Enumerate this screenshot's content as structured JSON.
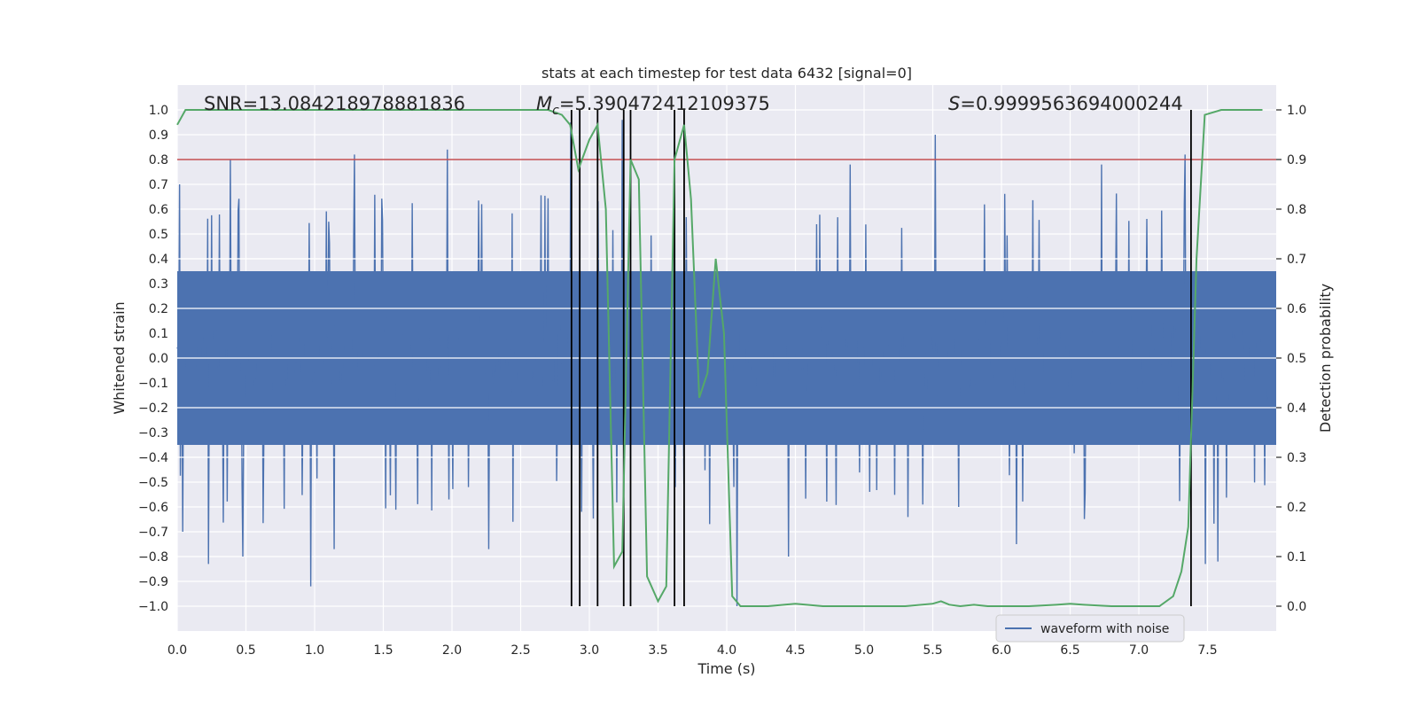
{
  "chart_data": {
    "type": "line",
    "title": "stats at each timestep for test data 6432 [signal=0]",
    "xlabel": "Time (s)",
    "ylabel": "Whitened strain",
    "y2label": "Detection probability",
    "xlim": [
      0.0,
      8.0
    ],
    "ylim": [
      -1.1,
      1.1
    ],
    "y2lim": [
      -0.05,
      1.05
    ],
    "x_ticks": [
      0.0,
      0.5,
      1.0,
      1.5,
      2.0,
      2.5,
      3.0,
      3.5,
      4.0,
      4.5,
      5.0,
      5.5,
      6.0,
      6.5,
      7.0,
      7.5
    ],
    "x_tick_labels": [
      "0.0",
      "0.5",
      "1.0",
      "1.5",
      "2.0",
      "2.5",
      "3.0",
      "3.5",
      "4.0",
      "4.5",
      "5.0",
      "5.5",
      "6.0",
      "6.5",
      "7.0",
      "7.5"
    ],
    "y_ticks": [
      -1.0,
      -0.9,
      -0.8,
      -0.7,
      -0.6,
      -0.5,
      -0.4,
      -0.3,
      -0.2,
      -0.1,
      0.0,
      0.1,
      0.2,
      0.3,
      0.4,
      0.5,
      0.6,
      0.7,
      0.8,
      0.9,
      1.0
    ],
    "y_tick_labels": [
      "−1.0",
      "−0.9",
      "−0.8",
      "−0.7",
      "−0.6",
      "−0.5",
      "−0.4",
      "−0.3",
      "−0.2",
      "−0.1",
      "0.0",
      "0.1",
      "0.2",
      "0.3",
      "0.4",
      "0.5",
      "0.6",
      "0.7",
      "0.8",
      "0.9",
      "1.0"
    ],
    "y2_ticks": [
      0.0,
      0.1,
      0.2,
      0.3,
      0.4,
      0.5,
      0.6,
      0.7,
      0.8,
      0.9,
      1.0
    ],
    "y2_tick_labels": [
      "0.0",
      "0.1",
      "0.2",
      "0.3",
      "0.4",
      "0.5",
      "0.6",
      "0.7",
      "0.8",
      "0.9",
      "1.0"
    ],
    "annotations": {
      "snr": "SNR=13.084218978881836",
      "mc_symbol": "M",
      "mc_sub": "c",
      "mc_value": "=5.390472412109375",
      "s_symbol": "S",
      "s_value": "=0.9999563694000244"
    },
    "legend": {
      "label": "waveform with noise",
      "loc": "lower-right"
    },
    "threshold": {
      "y2": 0.9,
      "color": "#c44e52"
    },
    "waveform": {
      "name": "waveform with noise",
      "color": "#4c72b0",
      "duration_s": 8.0,
      "samples": 1400,
      "core_amplitude": 0.35,
      "notable_peaks": [
        {
          "x": 0.02,
          "y": 0.7
        },
        {
          "x": 0.04,
          "y": -0.7
        },
        {
          "x": 0.23,
          "y": -0.83
        },
        {
          "x": 0.39,
          "y": 0.8
        },
        {
          "x": 0.48,
          "y": -0.8
        },
        {
          "x": 0.98,
          "y": -0.92
        },
        {
          "x": 1.15,
          "y": -0.77
        },
        {
          "x": 1.3,
          "y": 0.82
        },
        {
          "x": 1.98,
          "y": 0.84
        },
        {
          "x": 2.28,
          "y": -0.77
        },
        {
          "x": 2.88,
          "y": 0.95
        },
        {
          "x": 3.26,
          "y": 0.96
        },
        {
          "x": 3.64,
          "y": 0.97
        },
        {
          "x": 4.1,
          "y": -1.0
        },
        {
          "x": 4.48,
          "y": -0.8
        },
        {
          "x": 4.93,
          "y": 0.78
        },
        {
          "x": 5.55,
          "y": 0.9
        },
        {
          "x": 6.15,
          "y": -0.75
        },
        {
          "x": 6.77,
          "y": 0.78
        },
        {
          "x": 7.38,
          "y": 0.82
        },
        {
          "x": 7.53,
          "y": -0.83
        },
        {
          "x": 7.62,
          "y": -0.82
        }
      ]
    },
    "probability": {
      "name": "detection probability",
      "color": "#55a868",
      "x": [
        0.0,
        0.06,
        0.3,
        0.6,
        1.0,
        1.5,
        2.0,
        2.5,
        2.7,
        2.8,
        2.86,
        2.92,
        3.0,
        3.06,
        3.12,
        3.18,
        3.24,
        3.3,
        3.36,
        3.42,
        3.5,
        3.56,
        3.62,
        3.69,
        3.74,
        3.8,
        3.86,
        3.92,
        3.98,
        4.04,
        4.1,
        4.3,
        4.5,
        4.7,
        4.9,
        5.1,
        5.3,
        5.5,
        5.56,
        5.62,
        5.7,
        5.8,
        5.9,
        6.0,
        6.2,
        6.4,
        6.5,
        6.6,
        6.8,
        7.0,
        7.15,
        7.25,
        7.31,
        7.36,
        7.42,
        7.48,
        7.6,
        7.9
      ],
      "y": [
        0.97,
        1.0,
        1.0,
        1.0,
        1.0,
        1.0,
        1.0,
        1.0,
        1.0,
        0.99,
        0.97,
        0.88,
        0.94,
        0.97,
        0.8,
        0.08,
        0.11,
        0.9,
        0.86,
        0.06,
        0.01,
        0.04,
        0.9,
        0.97,
        0.82,
        0.42,
        0.47,
        0.7,
        0.55,
        0.02,
        0.0,
        0.0,
        0.005,
        0.0,
        0.0,
        0.0,
        0.0,
        0.005,
        0.01,
        0.003,
        0.0,
        0.003,
        0.0,
        0.0,
        0.0,
        0.003,
        0.005,
        0.003,
        0.0,
        0.0,
        0.0,
        0.02,
        0.07,
        0.16,
        0.7,
        0.99,
        1.0,
        1.0
      ]
    },
    "event_markers": {
      "color": "#000000",
      "x": [
        2.87,
        2.93,
        3.06,
        3.25,
        3.3,
        3.62,
        3.69,
        7.38
      ],
      "y2_range": [
        0.0,
        1.0
      ]
    }
  }
}
